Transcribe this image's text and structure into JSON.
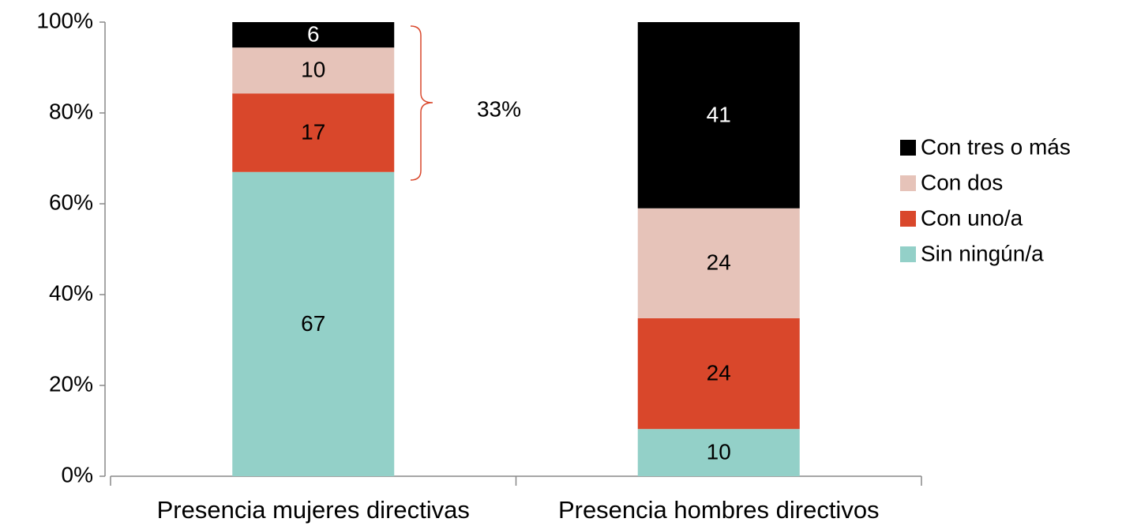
{
  "chart_data": {
    "type": "stacked_bar_percent",
    "categories": [
      "Presencia mujeres directivas",
      "Presencia hombres directivos"
    ],
    "series": [
      {
        "name": "Sin ningún/a",
        "color": "#93d0c8",
        "values": [
          67,
          10.4
        ],
        "value_labels": [
          "67",
          "10"
        ]
      },
      {
        "name": "Con uno/a",
        "color": "#d9472b",
        "values": [
          17.3,
          24.4
        ],
        "value_labels": [
          "17",
          "24"
        ]
      },
      {
        "name": "Con dos",
        "color": "#e6c3b9",
        "values": [
          10.1,
          24.2
        ],
        "value_labels": [
          "10",
          "24"
        ]
      },
      {
        "name": "Con tres o más",
        "color": "#000000",
        "values": [
          5.6,
          41
        ],
        "value_labels": [
          "6",
          "41"
        ]
      }
    ],
    "ylim": [
      0,
      100
    ],
    "yticks": [
      {
        "value": 0,
        "label": "0%"
      },
      {
        "value": 20,
        "label": "20%"
      },
      {
        "value": 40,
        "label": "40%"
      },
      {
        "value": 60,
        "label": "60%"
      },
      {
        "value": 80,
        "label": "80%"
      },
      {
        "value": 100,
        "label": "100%"
      }
    ],
    "annotation": "33%",
    "legend": "right"
  }
}
